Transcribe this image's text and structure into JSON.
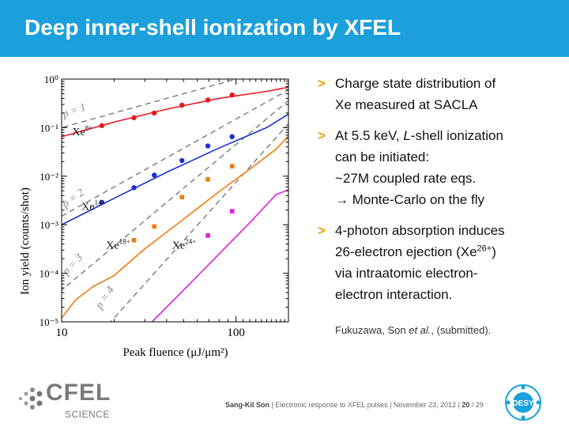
{
  "slide": {
    "title": "Deep inner-shell ionization by XFEL"
  },
  "bullets": [
    {
      "lines": [
        "Charge state distribution of",
        "Xe measured at SACLA"
      ]
    },
    {
      "lines": [
        "At 5.5 keV, L-shell ionization",
        "can be initiated:",
        "~27M coupled rate eqs.",
        "→ Monte-Carlo on the fly"
      ]
    },
    {
      "lines": [
        "4-photon absorption induces",
        "26-electron ejection (Xe26+)",
        "via intraatomic electron-",
        "electron interaction."
      ]
    }
  ],
  "citation": "Fukuzawa, Son et al., (submitted).",
  "footer": {
    "author": "Sang-Kil Son",
    "talk": "Electronic response to XFEL pulses",
    "date": "November 23, 2012",
    "page": "20",
    "total": "/ 29"
  },
  "logos": {
    "cfel_word": "CFEL",
    "cfel_sub": "SCIENCE",
    "desy": "DESY"
  },
  "colors": {
    "title_bar": "#1ba0dc",
    "bullet_mark": "#f0a000",
    "xe8": "#e8191e",
    "xe14": "#1530d8",
    "xe18": "#f07d10",
    "xe24": "#e01ee0",
    "guide": "#7a7a7a"
  },
  "chart_data": {
    "type": "scatter",
    "x_scale": "log",
    "y_scale": "log",
    "xlim": [
      10,
      200
    ],
    "ylim": [
      1e-05,
      1
    ],
    "xlabel": "Peak fluence (μJ/μm²)",
    "ylabel": "Ion yield (counts/shot)",
    "x_ticks": [
      "10",
      "100"
    ],
    "y_ticks": [
      "10⁰",
      "10⁻¹",
      "10⁻²",
      "10⁻³",
      "10⁻⁴",
      "10⁻⁵"
    ],
    "series": [
      {
        "name": "Xe8+",
        "color": "#e8191e",
        "points": [
          [
            17,
            0.11
          ],
          [
            26,
            0.16
          ],
          [
            34,
            0.2
          ],
          [
            49,
            0.29
          ],
          [
            69,
            0.37
          ],
          [
            95,
            0.47
          ]
        ],
        "curve": [
          [
            10,
            0.065
          ],
          [
            20,
            0.13
          ],
          [
            40,
            0.24
          ],
          [
            80,
            0.4
          ],
          [
            150,
            0.56
          ],
          [
            200,
            0.68
          ]
        ]
      },
      {
        "name": "Xe14+",
        "color": "#1530d8",
        "points": [
          [
            17,
            0.0029
          ],
          [
            26,
            0.0058
          ],
          [
            34,
            0.0105
          ],
          [
            49,
            0.021
          ],
          [
            69,
            0.042
          ],
          [
            95,
            0.065
          ]
        ],
        "curve": [
          [
            10,
            0.001
          ],
          [
            20,
            0.0035
          ],
          [
            40,
            0.012
          ],
          [
            80,
            0.038
          ],
          [
            150,
            0.1
          ],
          [
            200,
            0.19
          ]
        ]
      },
      {
        "name": "Xe18+",
        "color": "#f07d10",
        "points": [
          [
            26,
            0.00048
          ],
          [
            34,
            0.00092
          ],
          [
            49,
            0.0037
          ],
          [
            69,
            0.0086
          ],
          [
            95,
            0.016
          ]
        ],
        "curve": [
          [
            10,
            1.2e-05
          ],
          [
            12,
            2.8e-05
          ],
          [
            15,
            5.2e-05
          ],
          [
            20,
            9e-05
          ],
          [
            30,
            0.00032
          ],
          [
            50,
            0.0013
          ],
          [
            80,
            0.0048
          ],
          [
            120,
            0.014
          ],
          [
            170,
            0.036
          ],
          [
            200,
            0.067
          ]
        ]
      },
      {
        "name": "Xe24+",
        "color": "#e01ee0",
        "points": [
          [
            69,
            0.0006
          ],
          [
            95,
            0.0019
          ]
        ],
        "curve": [
          [
            33,
            1e-05
          ],
          [
            50,
            4.5e-05
          ],
          [
            80,
            0.00025
          ],
          [
            120,
            0.0011
          ],
          [
            170,
            0.0042
          ],
          [
            200,
            0.0052
          ]
        ]
      }
    ],
    "guides": [
      {
        "label": "p = 1",
        "slope": 1,
        "anchor": [
          10,
          0.1
        ]
      },
      {
        "label": "p = 2",
        "slope": 2,
        "anchor": [
          10,
          0.0015
        ]
      },
      {
        "label": "p = 3",
        "slope": 3,
        "anchor": [
          10,
          4.5e-05
        ]
      },
      {
        "label": "p = 4",
        "slope": 4,
        "anchor": [
          20,
          1.2e-05
        ]
      }
    ],
    "annotations": [
      {
        "label": "Xe8+",
        "x": 11.5,
        "y": 0.07,
        "color": "#e8191e"
      },
      {
        "label": "Xe14+",
        "x": 13,
        "y": 0.002,
        "color": "#1530d8"
      },
      {
        "label": "Xe18+",
        "x": 18,
        "y": 0.00032,
        "color": "#f07d10"
      },
      {
        "label": "Xe24+",
        "x": 43,
        "y": 0.00032,
        "color": "#e01ee0"
      }
    ],
    "grid": false,
    "legend": "none"
  }
}
